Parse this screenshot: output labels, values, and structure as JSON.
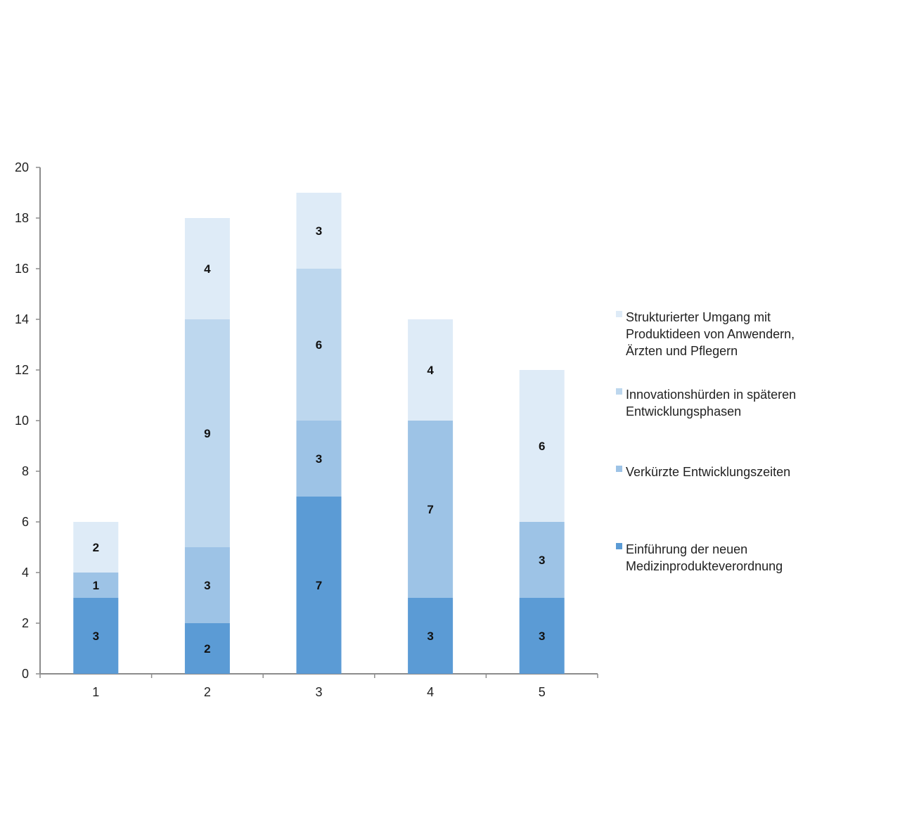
{
  "chart_data": {
    "type": "bar",
    "stacked": true,
    "categories": [
      "1",
      "2",
      "3",
      "4",
      "5"
    ],
    "ylim": [
      0,
      20
    ],
    "yticks": [
      "0",
      "2",
      "4",
      "6",
      "8",
      "10",
      "12",
      "14",
      "16",
      "18",
      "20"
    ],
    "grid": false,
    "legend_position": "right",
    "series": [
      {
        "name": "Einführung der neuen Medizinprodukteverordnung",
        "name_lines": [
          "Einführung der neuen",
          "Medizinprodukteverordnung"
        ],
        "color": "#5b9bd5",
        "values": [
          3,
          2,
          7,
          3,
          3
        ]
      },
      {
        "name": "Verkürzte Entwicklungszeiten",
        "name_lines": [
          "Verkürzte Entwicklungszeiten"
        ],
        "color": "#9dc3e6",
        "values": [
          1,
          3,
          3,
          7,
          3
        ]
      },
      {
        "name": "Innovationshürden in späteren Entwicklungsphasen",
        "name_lines": [
          "Innovationshürden in späteren",
          "Entwicklungsphasen"
        ],
        "color": "#bdd7ee",
        "values": [
          0,
          9,
          6,
          0,
          0
        ]
      },
      {
        "name": "Strukturierter Umgang mit Produktideen von Anwendern, Ärzten und Pflegern",
        "name_lines": [
          "Strukturierter Umgang mit",
          "Produktideen von Anwendern,",
          "Ärzten und Pflegern"
        ],
        "color": "#deebf7",
        "values": [
          2,
          4,
          3,
          4,
          6
        ]
      }
    ]
  }
}
